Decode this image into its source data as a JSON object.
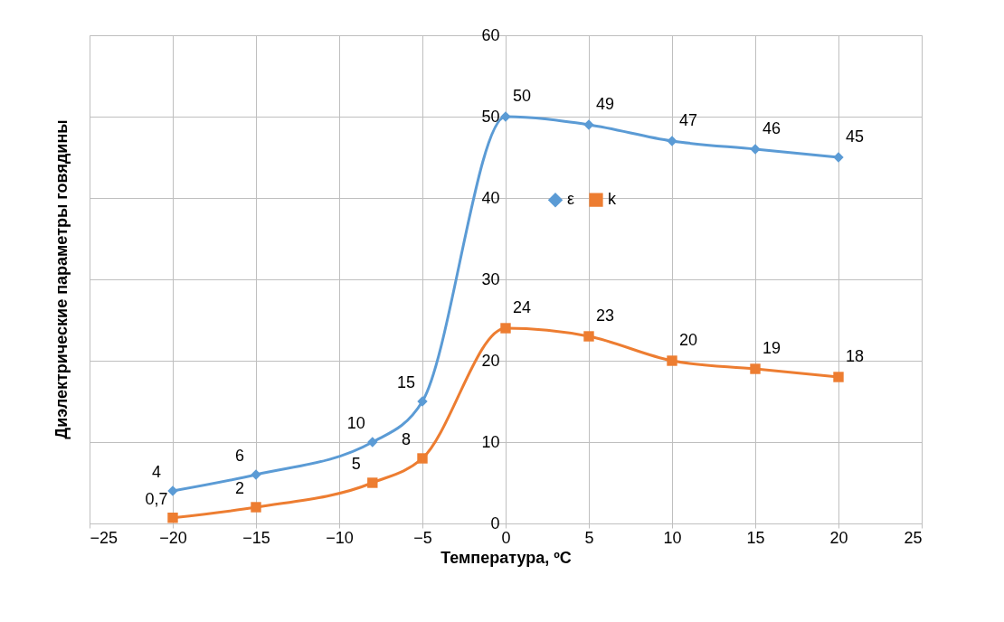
{
  "chart_data": {
    "type": "line",
    "xlabel": "Температура, ºС",
    "ylabel": "Диэлектрические параметры говядины",
    "x": [
      -20,
      -15,
      -8,
      -5,
      0,
      5,
      10,
      15,
      20
    ],
    "series": [
      {
        "name": "ε",
        "color": "#5b9bd5",
        "marker": "diamond",
        "values": [
          4,
          6,
          10,
          15,
          50,
          49,
          47,
          46,
          45
        ],
        "value_labels": [
          "4",
          "6",
          "10",
          "15",
          "50",
          "49",
          "47",
          "46",
          "45"
        ]
      },
      {
        "name": "k",
        "color": "#ed7d31",
        "marker": "square",
        "values": [
          0.7,
          2,
          5,
          8,
          24,
          23,
          20,
          19,
          18
        ],
        "value_labels": [
          "0,7",
          "2",
          "5",
          "8",
          "24",
          "23",
          "20",
          "19",
          "18"
        ]
      }
    ],
    "xlim": [
      -25,
      25
    ],
    "xticks": [
      -25,
      -20,
      -15,
      -10,
      -5,
      0,
      5,
      10,
      15,
      20,
      25
    ],
    "ylim": [
      0,
      60
    ],
    "yticks": [
      0,
      10,
      20,
      30,
      40,
      50,
      60
    ],
    "grid": true,
    "legend": "right",
    "line_style": "solid"
  }
}
